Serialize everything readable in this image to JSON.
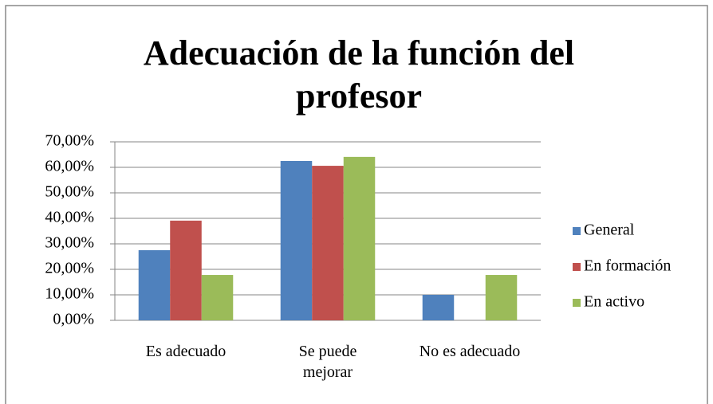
{
  "chart_data": {
    "type": "bar",
    "title": "Adecuación de la función del profesor",
    "categories": [
      "Es adecuado",
      "Se puede mejorar",
      "No es adecuado"
    ],
    "series": [
      {
        "name": "General",
        "color": "#4f81bd",
        "values": [
          27.5,
          62.5,
          10
        ]
      },
      {
        "name": "En formación",
        "color": "#c0504d",
        "values": [
          39.1,
          60.6,
          0
        ]
      },
      {
        "name": "En activo",
        "color": "#9bbb59",
        "values": [
          17.8,
          64.1,
          17.8
        ]
      }
    ],
    "ylim": [
      0,
      70
    ],
    "yticks": [
      {
        "value": 0,
        "label": "0,00%"
      },
      {
        "value": 10,
        "label": "10,00%"
      },
      {
        "value": 20,
        "label": "20,00%"
      },
      {
        "value": 30,
        "label": "30,00%"
      },
      {
        "value": 40,
        "label": "40,00%"
      },
      {
        "value": 50,
        "label": "50,00%"
      },
      {
        "value": 60,
        "label": "60,00%"
      },
      {
        "value": 70,
        "label": "70,00%"
      }
    ],
    "grid": true,
    "legend": "right"
  }
}
